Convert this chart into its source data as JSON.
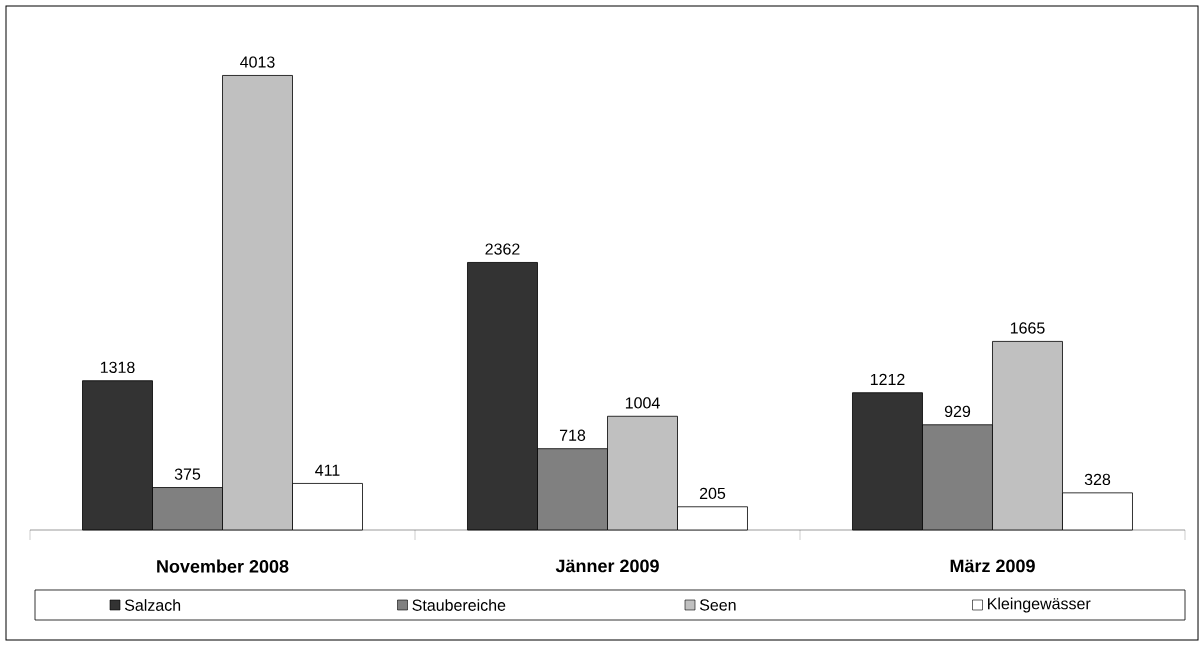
{
  "chart_data": {
    "type": "bar",
    "categories": [
      "November 2008",
      "Jänner 2009",
      "März 2009"
    ],
    "series": [
      {
        "name": "Salzach",
        "color": "#333333",
        "values": [
          1318,
          2362,
          1212
        ]
      },
      {
        "name": "Staubereiche",
        "color": "#808080",
        "values": [
          375,
          718,
          929
        ]
      },
      {
        "name": "Seen",
        "color": "#c0c0c0",
        "values": [
          4013,
          1004,
          1665
        ]
      },
      {
        "name": "Kleingewässer",
        "color": "#ffffff",
        "values": [
          411,
          205,
          328
        ]
      }
    ],
    "data_labels": true,
    "legend": "bottom"
  }
}
